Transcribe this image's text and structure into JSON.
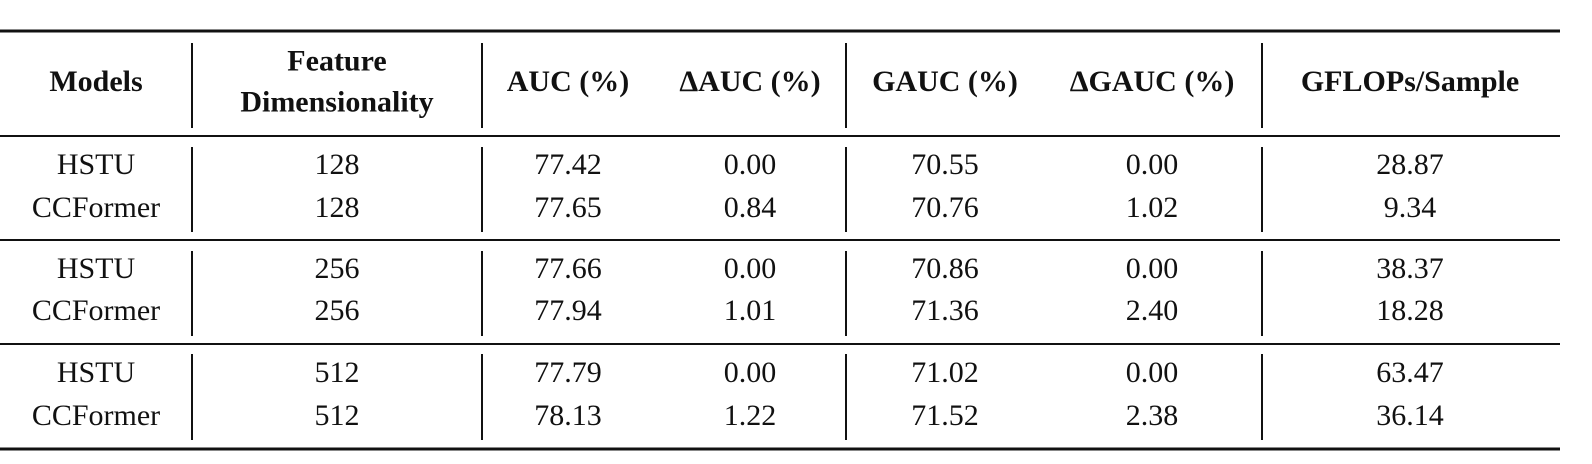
{
  "table": {
    "columns": [
      [
        "Models"
      ],
      [
        "Feature",
        "Dimensionality"
      ],
      [
        "AUC (%)"
      ],
      [
        "ΔAUC (%)"
      ],
      [
        "GAUC (%)"
      ],
      [
        "ΔGAUC (%)"
      ],
      [
        "GFLOPs/Sample"
      ]
    ],
    "groups": [
      [
        [
          "HSTU",
          "128",
          "77.42",
          "0.00",
          "70.55",
          "0.00",
          "28.87"
        ],
        [
          "CCFormer",
          "128",
          "77.65",
          "0.84",
          "70.76",
          "1.02",
          "9.34"
        ]
      ],
      [
        [
          "HSTU",
          "256",
          "77.66",
          "0.00",
          "70.86",
          "0.00",
          "38.37"
        ],
        [
          "CCFormer",
          "256",
          "77.94",
          "1.01",
          "71.36",
          "2.40",
          "18.28"
        ]
      ],
      [
        [
          "HSTU",
          "512",
          "77.79",
          "0.00",
          "71.02",
          "0.00",
          "63.47"
        ],
        [
          "CCFormer",
          "512",
          "78.13",
          "1.22",
          "71.52",
          "2.38",
          "36.14"
        ]
      ]
    ]
  }
}
